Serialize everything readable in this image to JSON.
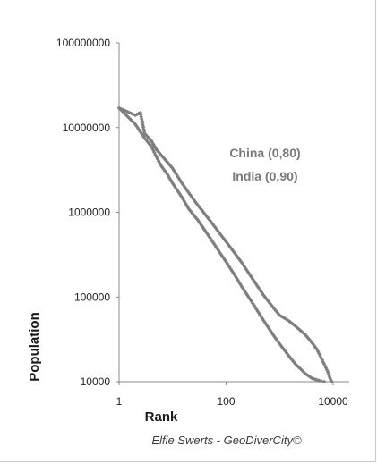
{
  "chart_data": {
    "type": "line",
    "xscale": "log",
    "yscale": "log",
    "xlim": [
      1,
      20000
    ],
    "ylim": [
      10000,
      100000000
    ],
    "xticks": [
      "1",
      "100",
      "10000"
    ],
    "yticks": [
      "100000000",
      "10000000",
      "1000000",
      "100000",
      "10000"
    ],
    "xlabel": "Rank",
    "ylabel": "Population",
    "annotations": [
      "China (0,80)",
      "India (0,90)"
    ],
    "credit": "Elfie Swerts - GeoDiverCity©",
    "marker_color": "#7f7f7f",
    "series": [
      {
        "x": [
          1,
          2,
          3,
          4,
          5,
          6,
          8,
          10,
          15,
          20,
          30,
          50,
          80,
          100,
          150,
          200,
          300,
          500,
          800,
          1000,
          1500,
          2000,
          2500,
          3000,
          4000,
          5000,
          6000,
          6800
        ],
        "y": [
          17000000,
          11000000,
          7500000,
          6000000,
          4500000,
          3600000,
          2800000,
          2200000,
          1500000,
          1100000,
          800000,
          500000,
          320000,
          260000,
          175000,
          130000,
          88000,
          53000,
          34000,
          28000,
          20000,
          16000,
          14000,
          12500,
          11000,
          10500,
          10200,
          10000
        ]
      },
      {
        "x": [
          1,
          2,
          2.5,
          3,
          4,
          5,
          7,
          10,
          15,
          20,
          30,
          50,
          80,
          100,
          150,
          200,
          300,
          500,
          800,
          1000,
          1500,
          2000,
          3000,
          4000,
          5000,
          6000,
          7000,
          8000,
          8500,
          9000,
          9500
        ],
        "y": [
          17000000,
          14000000,
          15000000,
          8500000,
          7000000,
          5500000,
          4300000,
          3300000,
          2200000,
          1700000,
          1200000,
          800000,
          540000,
          450000,
          320000,
          250000,
          170000,
          105000,
          72000,
          61000,
          52000,
          45000,
          36000,
          29000,
          24000,
          19000,
          15500,
          13000,
          11500,
          10500,
          10000
        ]
      }
    ]
  }
}
